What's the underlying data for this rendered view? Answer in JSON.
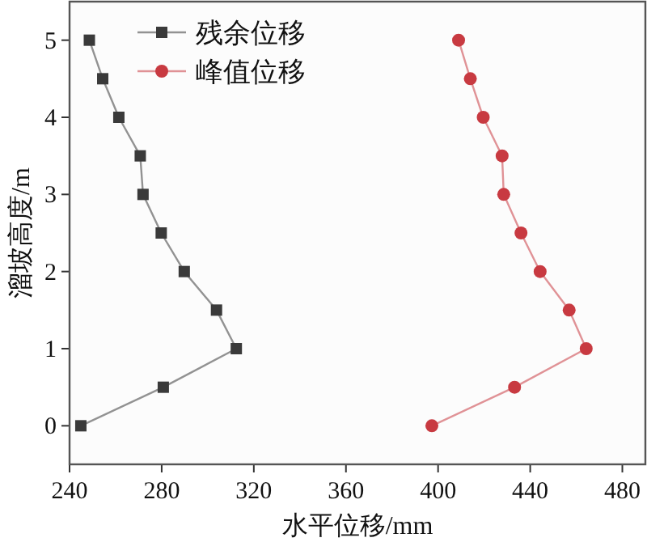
{
  "chart_data": {
    "type": "line",
    "xlabel": "水平位移/mm",
    "ylabel": "溜坡高度/m",
    "series": [
      {
        "name": "残余位移",
        "color": "#3a3a3a",
        "marker": "square",
        "x": [
          248.6,
          254.4,
          261.4,
          270.7,
          271.9,
          279.8,
          289.8,
          303.8,
          312.4,
          280.7,
          244.9
        ],
        "values": [
          5,
          4.5,
          4,
          3.5,
          3,
          2.5,
          2,
          1.5,
          1,
          0.5,
          0
        ]
      },
      {
        "name": "峰值位移",
        "color": "#c83a41",
        "marker": "circle",
        "x": [
          408.9,
          414,
          419.6,
          427.8,
          428.5,
          436,
          444.3,
          456.9,
          464.3,
          433.2,
          397.3
        ],
        "values": [
          5,
          4.5,
          4,
          3.5,
          3,
          2.5,
          2,
          1.5,
          1,
          0.5,
          0
        ]
      }
    ],
    "xlim": [
      240,
      490
    ],
    "xticks": [
      240,
      280,
      320,
      360,
      400,
      440,
      480
    ],
    "ylim": [
      -0.5,
      5.5
    ],
    "yticks": [
      0,
      1,
      2,
      3,
      4,
      5
    ],
    "legend": "top left",
    "grid": false,
    "line_style": "solid"
  }
}
